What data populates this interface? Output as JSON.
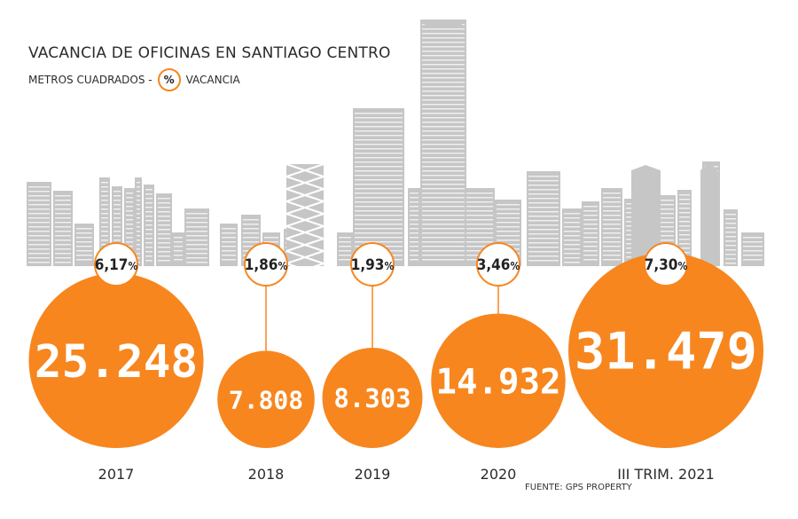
{
  "header": {
    "title": "VACANCIA DE OFICINAS EN SANTIAGO CENTRO",
    "subtitle_prefix": "METROS CUADRADOS -",
    "legend_symbol": "%",
    "legend_label": "VACANCIA"
  },
  "source": "FUENTE: GPS PROPERTY",
  "colors": {
    "bubble": "#f7861e",
    "skyline": "#c6c6c6",
    "text": "#2b2b2b"
  },
  "chart_data": {
    "type": "bubble",
    "title": "VACANCIA DE OFICINAS EN SANTIAGO CENTRO",
    "categories": [
      "2017",
      "2018",
      "2019",
      "2020",
      "III TRIM. 2021"
    ],
    "series": [
      {
        "name": "METROS CUADRADOS",
        "values": [
          25248,
          7808,
          8303,
          14932,
          31479
        ],
        "labels": [
          "25.248",
          "7.808",
          "8.303",
          "14.932",
          "31.479"
        ]
      },
      {
        "name": "VACANCIA",
        "values": [
          6.17,
          1.86,
          1.93,
          3.46,
          7.3
        ],
        "labels": [
          "6,17",
          "1,86",
          "1,93",
          "3,46",
          "7,30"
        ],
        "unit": "%"
      }
    ]
  }
}
